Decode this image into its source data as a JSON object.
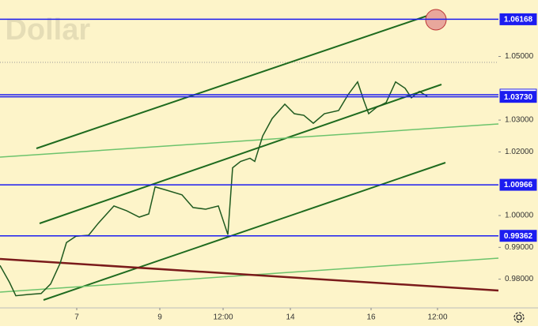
{
  "chart_data": {
    "type": "line",
    "watermark": "S. Dollar",
    "x": [
      0,
      3,
      5,
      9,
      13,
      16,
      19,
      21,
      24,
      28,
      31,
      36,
      40,
      44,
      47,
      49,
      52.5,
      57.5,
      61,
      65,
      69,
      72,
      73.5,
      76,
      79,
      80.5,
      83,
      86,
      90,
      93,
      96,
      99,
      102.5,
      107,
      110,
      113,
      115,
      116.5,
      119,
      122,
      125,
      128,
      130,
      132.5,
      135
    ],
    "series": [
      {
        "color": "#1f5a1f",
        "values": [
          0.9843,
          0.979,
          0.9748,
          0.9752,
          0.9755,
          0.9785,
          0.985,
          0.9915,
          0.9935,
          0.9938,
          0.9975,
          1.003,
          1.0015,
          0.9995,
          1.0005,
          1.009,
          1.008,
          1.0065,
          1.0025,
          1.002,
          1.003,
          0.994,
          1.015,
          1.017,
          1.018,
          1.017,
          1.025,
          1.0305,
          1.035,
          1.032,
          1.0315,
          1.029,
          1.032,
          1.033,
          1.038,
          1.042,
          1.036,
          1.032,
          1.034,
          1.0355,
          1.042,
          1.04,
          1.037,
          1.039,
          1.0375
        ]
      }
    ],
    "xlim": [
      0,
      157.5
    ],
    "xticks": [
      {
        "value": 24.25,
        "label": "7"
      },
      {
        "value": 50.5,
        "label": "9"
      },
      {
        "value": 70.5,
        "label": "12:00"
      },
      {
        "value": 91.75,
        "label": "14"
      },
      {
        "value": 117.25,
        "label": "16"
      },
      {
        "value": 138.25,
        "label": "12:00"
      }
    ],
    "ylim": [
      0.97097,
      1.06774
    ],
    "yticks": [
      {
        "value": 0.98,
        "label": "0.98000"
      },
      {
        "value": 0.99,
        "label": "0.99000"
      },
      {
        "value": 1.0,
        "label": "1.00000"
      },
      {
        "value": 1.02,
        "label": "1.02000"
      },
      {
        "value": 1.03,
        "label": "1.03000"
      },
      {
        "value": 1.05,
        "label": "1.05000"
      }
    ],
    "levels": [
      {
        "value": 1.06168,
        "label": "1.06168",
        "color": "#1c1cf0"
      },
      {
        "value": 1.03798,
        "label": "1.03798",
        "color": "#1c1cf0"
      },
      {
        "value": 1.0373,
        "label": "1.03730",
        "color": "#1c1cf0"
      },
      {
        "value": 1.00966,
        "label": "1.00966",
        "color": "#1c1cf0"
      },
      {
        "value": 0.99362,
        "label": "0.99362",
        "color": "#1c1cf0"
      }
    ],
    "background": "#fdf4c9"
  }
}
